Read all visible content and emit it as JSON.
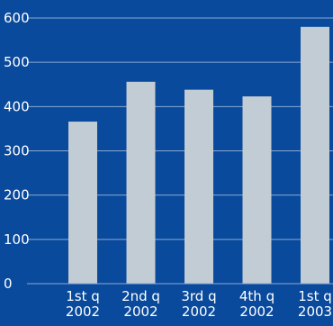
{
  "chart_data": {
    "type": "bar",
    "title": "",
    "xlabel": "",
    "ylabel": "",
    "categories": [
      [
        "1st q",
        "2002"
      ],
      [
        "2nd q",
        "2002"
      ],
      [
        "3rd q",
        "2002"
      ],
      [
        "4th q",
        "2002"
      ],
      [
        "1st q",
        "2003"
      ]
    ],
    "values": [
      366,
      456,
      438,
      423,
      580
    ],
    "ylim": [
      0,
      600
    ],
    "yticks": [
      "0",
      "100",
      "200",
      "300",
      "400",
      "500",
      "600"
    ],
    "grid": true,
    "legend": "none",
    "colors": {
      "background": "#0a4a9c",
      "bar": "#c2ccd4",
      "gridline": "#8aa8d4",
      "text": "#ffffff"
    }
  }
}
